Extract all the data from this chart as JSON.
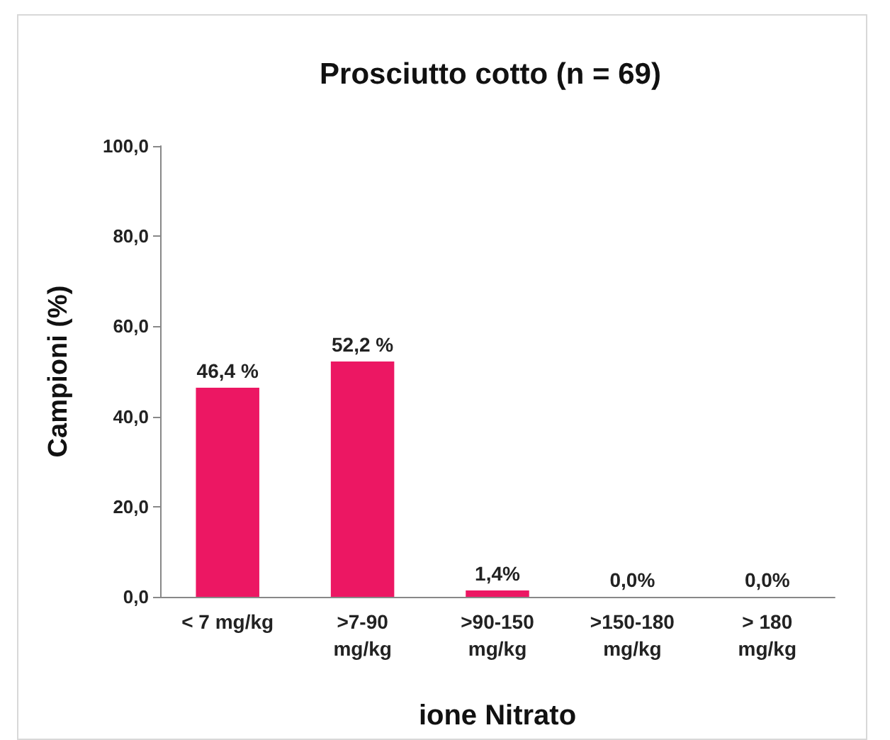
{
  "chart_data": {
    "type": "bar",
    "title": "Prosciutto cotto (n = 69)",
    "xlabel": "ione Nitrato",
    "ylabel": "Campioni (%)",
    "categories": [
      "< 7 mg/kg",
      ">7-90\nmg/kg",
      ">90-150\nmg/kg",
      ">150-180\nmg/kg",
      "> 180\nmg/kg"
    ],
    "values": [
      46.4,
      52.2,
      1.4,
      0,
      0
    ],
    "value_labels": [
      "46,4 %",
      "52,2 %",
      "1,4%",
      "0,0%",
      "0,0%"
    ],
    "color": "#ec1763",
    "ylim": [
      0,
      100
    ],
    "yticks": [
      {
        "value": 0,
        "label": "0,0"
      },
      {
        "value": 20,
        "label": "20,0"
      },
      {
        "value": 40,
        "label": "40,0"
      },
      {
        "value": 60,
        "label": "60,0"
      },
      {
        "value": 80,
        "label": "80,0"
      },
      {
        "value": 100,
        "label": "100,0"
      }
    ],
    "grid": false
  }
}
